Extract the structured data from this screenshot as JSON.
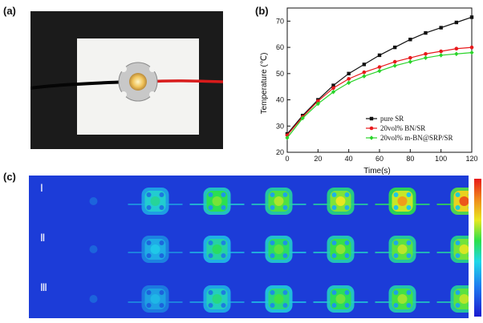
{
  "panels": {
    "a": "(a)",
    "b": "(b)",
    "c": "(c)"
  },
  "thermal": {
    "rows": [
      "Ⅰ",
      "Ⅱ",
      "Ⅲ"
    ]
  },
  "chart_data": {
    "type": "line",
    "xlabel": "Time(s)",
    "ylabel": "Temperature (℃)",
    "xlim": [
      0,
      120
    ],
    "ylim": [
      20,
      75
    ],
    "xticks": [
      0,
      20,
      40,
      60,
      80,
      100,
      120
    ],
    "yticks": [
      20,
      30,
      40,
      50,
      60,
      70
    ],
    "legend_position": "bottom-right",
    "grid": false,
    "x": [
      0,
      10,
      20,
      30,
      40,
      50,
      60,
      70,
      80,
      90,
      100,
      110,
      120
    ],
    "series": [
      {
        "name": "pure SR",
        "color": "#111111",
        "marker": "square",
        "values": [
          27,
          34,
          40,
          45.5,
          50,
          53.5,
          57,
          60,
          63,
          65.5,
          67.5,
          69.5,
          71.5
        ]
      },
      {
        "name": "20vol% BN/SR",
        "color": "#e8191c",
        "marker": "circle",
        "values": [
          26.5,
          33.5,
          39.5,
          44.5,
          48,
          50.5,
          52.5,
          54.5,
          56,
          57.5,
          58.5,
          59.5,
          60
        ]
      },
      {
        "name": "20vol% m-BN@SRP/SR",
        "color": "#2ad42a",
        "marker": "diamond",
        "values": [
          25.5,
          33,
          38.5,
          43,
          46.5,
          49,
          51,
          53,
          54.5,
          56,
          57,
          57.5,
          58
        ]
      }
    ]
  },
  "colors": {
    "thermal_bg": "#1c3cd8",
    "photo_bg": "#1b1b1b",
    "board": "#f3f3f1"
  }
}
